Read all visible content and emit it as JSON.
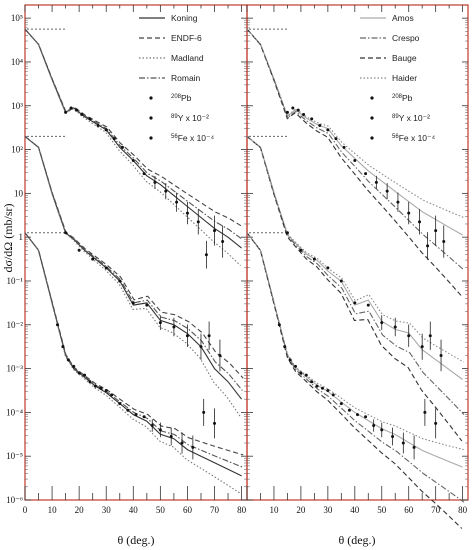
{
  "chart_data": [
    {
      "type": "line",
      "panel": "left",
      "ylabel": "dσ/dΩ (mb/sr)",
      "xlabel": "θ (deg.)",
      "xlim": [
        0,
        82
      ],
      "ylim_log10": [
        -6,
        5.3
      ],
      "y_scale": "log",
      "grid": false,
      "legend_placement": "top-right",
      "x_ticks": [
        "0",
        "10",
        "20",
        "30",
        "40",
        "50",
        "60",
        "70",
        "80"
      ],
      "y_ticks": [
        {
          "v": -6,
          "t": "10⁻⁶"
        },
        {
          "v": -5,
          "t": "10⁻⁵"
        },
        {
          "v": -4,
          "t": "10⁻⁴"
        },
        {
          "v": -3,
          "t": "10⁻³"
        },
        {
          "v": -2,
          "t": "10⁻²"
        },
        {
          "v": -1,
          "t": "10⁻¹"
        },
        {
          "v": 0,
          "t": "1"
        },
        {
          "v": 1,
          "t": "10"
        },
        {
          "v": 2,
          "t": "10²"
        },
        {
          "v": 3,
          "t": "10³"
        },
        {
          "v": 4,
          "t": "10⁴"
        },
        {
          "v": 5,
          "t": "10⁵"
        }
      ],
      "legend_lines": [
        {
          "name": "Koning",
          "style": "solid",
          "color": "#333333"
        },
        {
          "name": "ENDF-6",
          "style": "dashed",
          "color": "#444444"
        },
        {
          "name": "Madland",
          "style": "dotted",
          "color": "#777777"
        },
        {
          "name": "Romain",
          "style": "dashdot",
          "color": "#555555"
        }
      ],
      "legend_points": [
        {
          "pre": "208",
          "name": "Pb",
          "post": ""
        },
        {
          "pre": "89",
          "name": "Y",
          "post": " x 10⁻²"
        },
        {
          "pre": "56",
          "name": "Fe",
          "post": " x 10⁻⁴"
        }
      ],
      "series": [
        {
          "name": "Pb",
          "x": [
            0,
            5,
            10,
            15,
            18,
            22,
            26,
            30,
            35,
            40,
            45,
            50,
            55,
            60,
            65,
            70,
            75,
            80
          ],
          "y": [
            4.75,
            4.4,
            3.6,
            2.85,
            2.95,
            2.75,
            2.6,
            2.45,
            2.05,
            1.75,
            1.4,
            1.2,
            0.95,
            0.7,
            0.45,
            0.2,
            0.0,
            -0.25
          ]
        },
        {
          "name": "Y",
          "x": [
            0,
            5,
            10,
            15,
            18,
            22,
            26,
            30,
            35,
            40,
            45,
            50,
            55,
            60,
            65,
            70,
            75,
            80
          ],
          "y": [
            2.3,
            2.05,
            1.0,
            0.1,
            -0.05,
            -0.3,
            -0.5,
            -0.7,
            -1.0,
            -1.55,
            -1.5,
            -1.9,
            -2.0,
            -2.2,
            -2.5,
            -3.0,
            -3.3,
            -3.7
          ]
        },
        {
          "name": "Fe",
          "x": [
            0,
            5,
            10,
            15,
            18,
            22,
            26,
            30,
            35,
            40,
            45,
            50,
            55,
            60,
            65,
            70,
            75,
            80
          ],
          "y": [
            0.1,
            -0.3,
            -1.5,
            -2.7,
            -3.0,
            -3.2,
            -3.4,
            -3.55,
            -3.8,
            -4.05,
            -4.2,
            -4.5,
            -4.6,
            -4.85,
            -5.0,
            -5.15,
            -5.3,
            -5.45
          ]
        }
      ],
      "data_points": [
        {
          "series": "Pb",
          "x": [
            15,
            17,
            19,
            21,
            24,
            27,
            30,
            33,
            36,
            40,
            44,
            48,
            52,
            56,
            60,
            64,
            67,
            70,
            73
          ],
          "y": [
            2.85,
            2.95,
            2.9,
            2.8,
            2.7,
            2.55,
            2.45,
            2.25,
            2.05,
            1.75,
            1.45,
            1.25,
            1.05,
            0.8,
            0.55,
            0.35,
            -0.4,
            0.15,
            -0.1
          ]
        },
        {
          "series": "Y",
          "x": [
            15,
            20,
            25,
            30,
            35,
            40,
            45,
            50,
            55,
            60,
            65,
            68,
            72
          ],
          "y": [
            0.1,
            -0.3,
            -0.5,
            -0.7,
            -1.0,
            -1.5,
            -1.55,
            -1.95,
            -2.05,
            -2.25,
            -2.5,
            -2.25,
            -2.7
          ]
        },
        {
          "series": "Fe",
          "x": [
            12,
            14,
            16,
            18,
            20,
            22,
            24,
            26,
            28,
            30,
            32,
            35,
            38,
            41,
            44,
            47,
            50,
            54,
            58,
            62,
            66,
            70
          ],
          "y": [
            -2.0,
            -2.5,
            -2.8,
            -2.95,
            -3.1,
            -3.15,
            -3.3,
            -3.4,
            -3.45,
            -3.5,
            -3.6,
            -3.8,
            -3.95,
            -4.05,
            -4.1,
            -4.3,
            -4.4,
            -4.55,
            -4.7,
            -4.8,
            -4.0,
            -4.25
          ]
        }
      ]
    },
    {
      "type": "line",
      "panel": "right",
      "ylabel": "",
      "xlabel": "θ (deg.)",
      "xlim": [
        0,
        82
      ],
      "ylim_log10": [
        -6,
        5.3
      ],
      "y_scale": "log",
      "grid": false,
      "legend_placement": "top-right",
      "x_ticks": [
        "10",
        "20",
        "30",
        "40",
        "50",
        "60",
        "70",
        "80"
      ],
      "legend_lines": [
        {
          "name": "Amos",
          "style": "solid",
          "color": "#aaaaaa"
        },
        {
          "name": "Crespo",
          "style": "dashdot",
          "color": "#666666"
        },
        {
          "name": "Bauge",
          "style": "dashed",
          "color": "#333333"
        },
        {
          "name": "Haider",
          "style": "dotted",
          "color": "#888888"
        }
      ],
      "legend_points": [
        {
          "pre": "208",
          "name": "Pb",
          "post": ""
        },
        {
          "pre": "89",
          "name": "Y",
          "post": " x 10⁻²"
        },
        {
          "pre": "56",
          "name": "Fe",
          "post": " x 10⁻⁴"
        }
      ],
      "series": [
        {
          "name": "Pb",
          "x": [
            0,
            5,
            10,
            15,
            18,
            22,
            26,
            30,
            35,
            40,
            45,
            50,
            55,
            60,
            65,
            70,
            75,
            80
          ],
          "y": [
            4.75,
            4.4,
            3.6,
            2.75,
            2.9,
            2.7,
            2.55,
            2.45,
            2.05,
            1.75,
            1.45,
            1.2,
            0.95,
            0.7,
            0.45,
            0.25,
            0.05,
            -0.15
          ]
        },
        {
          "name": "Y",
          "x": [
            0,
            5,
            10,
            15,
            18,
            22,
            26,
            30,
            35,
            40,
            45,
            50,
            55,
            60,
            65,
            70,
            75,
            80
          ],
          "y": [
            2.3,
            2.05,
            1.0,
            0.05,
            -0.15,
            -0.4,
            -0.55,
            -0.8,
            -1.05,
            -1.6,
            -1.5,
            -2.0,
            -2.2,
            -2.3,
            -2.7,
            -2.95,
            -3.2,
            -3.45
          ]
        },
        {
          "name": "Fe",
          "x": [
            0,
            5,
            10,
            15,
            18,
            22,
            26,
            30,
            35,
            40,
            45,
            50,
            55,
            60,
            65,
            70,
            75,
            80
          ],
          "y": [
            0.1,
            -0.3,
            -1.5,
            -2.7,
            -3.0,
            -3.2,
            -3.4,
            -3.55,
            -3.8,
            -4.05,
            -4.25,
            -4.45,
            -4.6,
            -4.8,
            -5.0,
            -5.15,
            -5.3,
            -5.45
          ]
        }
      ],
      "data_points": [
        {
          "series": "Pb",
          "x": [
            15,
            17,
            19,
            21,
            24,
            27,
            30,
            33,
            36,
            40,
            44,
            48,
            52,
            56,
            60,
            64,
            67,
            70,
            73
          ],
          "y": [
            2.85,
            2.95,
            2.9,
            2.8,
            2.7,
            2.55,
            2.45,
            2.25,
            2.05,
            1.75,
            1.45,
            1.25,
            1.05,
            0.8,
            0.55,
            0.35,
            -0.2,
            0.15,
            -0.1
          ]
        },
        {
          "series": "Y",
          "x": [
            15,
            20,
            25,
            30,
            35,
            40,
            45,
            50,
            55,
            60,
            65,
            68,
            72
          ],
          "y": [
            0.1,
            -0.3,
            -0.5,
            -0.7,
            -1.0,
            -1.5,
            -1.55,
            -1.95,
            -2.05,
            -2.25,
            -2.5,
            -2.25,
            -2.7
          ]
        },
        {
          "series": "Fe",
          "x": [
            12,
            14,
            16,
            18,
            20,
            22,
            24,
            26,
            28,
            30,
            32,
            35,
            38,
            41,
            44,
            47,
            50,
            54,
            58,
            62,
            66,
            70
          ],
          "y": [
            -2.0,
            -2.5,
            -2.8,
            -2.95,
            -3.1,
            -3.15,
            -3.3,
            -3.4,
            -3.45,
            -3.5,
            -3.6,
            -3.8,
            -3.95,
            -4.05,
            -4.1,
            -4.3,
            -4.4,
            -4.55,
            -4.7,
            -4.8,
            -4.0,
            -4.25
          ]
        }
      ]
    }
  ]
}
